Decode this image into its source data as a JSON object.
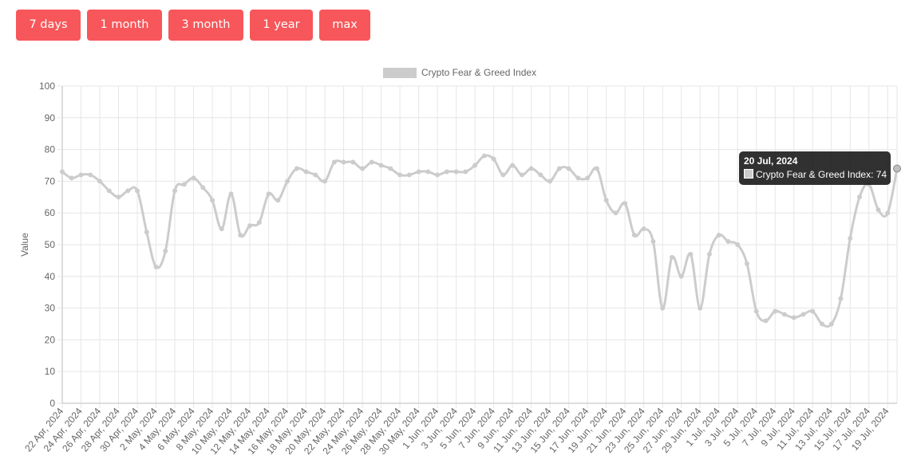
{
  "range_buttons": [
    {
      "label": "7 days"
    },
    {
      "label": "1 month"
    },
    {
      "label": "3 month"
    },
    {
      "label": "1 year"
    },
    {
      "label": "max"
    }
  ],
  "colors": {
    "button_bg": "#f7575a",
    "line": "#cccccc",
    "grid": "#e6e6e6",
    "axis_text": "#666666"
  },
  "tooltip": {
    "title": "20 Jul, 2024",
    "series": "Crypto Fear & Greed Index",
    "value": 74,
    "text": "Crypto Fear & Greed Index: 74"
  },
  "chart_data": {
    "type": "line",
    "title": "",
    "xlabel": "",
    "ylabel": "Value",
    "ylim": [
      0,
      100
    ],
    "yticks": [
      0,
      10,
      20,
      30,
      40,
      50,
      60,
      70,
      80,
      90,
      100
    ],
    "grid": true,
    "legend_position": "top-center",
    "x": [
      "22 Apr, 2024",
      "23 Apr, 2024",
      "24 Apr, 2024",
      "25 Apr, 2024",
      "26 Apr, 2024",
      "27 Apr, 2024",
      "28 Apr, 2024",
      "29 Apr, 2024",
      "30 Apr, 2024",
      "1 May, 2024",
      "2 May, 2024",
      "3 May, 2024",
      "4 May, 2024",
      "5 May, 2024",
      "6 May, 2024",
      "7 May, 2024",
      "8 May, 2024",
      "9 May, 2024",
      "10 May, 2024",
      "11 May, 2024",
      "12 May, 2024",
      "13 May, 2024",
      "14 May, 2024",
      "15 May, 2024",
      "16 May, 2024",
      "17 May, 2024",
      "18 May, 2024",
      "19 May, 2024",
      "20 May, 2024",
      "21 May, 2024",
      "22 May, 2024",
      "23 May, 2024",
      "24 May, 2024",
      "25 May, 2024",
      "26 May, 2024",
      "27 May, 2024",
      "28 May, 2024",
      "29 May, 2024",
      "30 May, 2024",
      "31 May, 2024",
      "1 Jun, 2024",
      "2 Jun, 2024",
      "3 Jun, 2024",
      "4 Jun, 2024",
      "5 Jun, 2024",
      "6 Jun, 2024",
      "7 Jun, 2024",
      "8 Jun, 2024",
      "9 Jun, 2024",
      "10 Jun, 2024",
      "11 Jun, 2024",
      "12 Jun, 2024",
      "13 Jun, 2024",
      "14 Jun, 2024",
      "15 Jun, 2024",
      "16 Jun, 2024",
      "17 Jun, 2024",
      "18 Jun, 2024",
      "19 Jun, 2024",
      "20 Jun, 2024",
      "21 Jun, 2024",
      "22 Jun, 2024",
      "23 Jun, 2024",
      "24 Jun, 2024",
      "25 Jun, 2024",
      "26 Jun, 2024",
      "27 Jun, 2024",
      "28 Jun, 2024",
      "29 Jun, 2024",
      "30 Jun, 2024",
      "1 Jul, 2024",
      "2 Jul, 2024",
      "3 Jul, 2024",
      "4 Jul, 2024",
      "5 Jul, 2024",
      "6 Jul, 2024",
      "7 Jul, 2024",
      "8 Jul, 2024",
      "9 Jul, 2024",
      "10 Jul, 2024",
      "11 Jul, 2024",
      "12 Jul, 2024",
      "13 Jul, 2024",
      "14 Jul, 2024",
      "15 Jul, 2024",
      "16 Jul, 2024",
      "17 Jul, 2024",
      "18 Jul, 2024",
      "19 Jul, 2024",
      "20 Jul, 2024"
    ],
    "x_tick_labels": [
      "22 Apr, 2024",
      "24 Apr, 2024",
      "26 Apr, 2024",
      "28 Apr, 2024",
      "30 Apr, 2024",
      "2 May, 2024",
      "4 May, 2024",
      "6 May, 2024",
      "8 May, 2024",
      "10 May, 2024",
      "12 May, 2024",
      "14 May, 2024",
      "16 May, 2024",
      "18 May, 2024",
      "20 May, 2024",
      "22 May, 2024",
      "24 May, 2024",
      "26 May, 2024",
      "28 May, 2024",
      "30 May, 2024",
      "1 Jun, 2024",
      "3 Jun, 2024",
      "5 Jun, 2024",
      "7 Jun, 2024",
      "9 Jun, 2024",
      "11 Jun, 2024",
      "13 Jun, 2024",
      "15 Jun, 2024",
      "17 Jun, 2024",
      "19 Jun, 2024",
      "21 Jun, 2024",
      "23 Jun, 2024",
      "25 Jun, 2024",
      "27 Jun, 2024",
      "29 Jun, 2024",
      "1 Jul, 2024",
      "3 Jul, 2024",
      "5 Jul, 2024",
      "7 Jul, 2024",
      "9 Jul, 2024",
      "11 Jul, 2024",
      "13 Jul, 2024",
      "15 Jul, 2024",
      "17 Jul, 2024",
      "19 Jul, 2024"
    ],
    "series": [
      {
        "name": "Crypto Fear & Greed Index",
        "values": [
          73,
          71,
          72,
          72,
          70,
          67,
          65,
          67,
          67,
          54,
          43,
          48,
          67,
          69,
          71,
          68,
          64,
          55,
          66,
          53,
          56,
          57,
          66,
          64,
          70,
          74,
          73,
          72,
          70,
          76,
          76,
          76,
          74,
          76,
          75,
          74,
          72,
          72,
          73,
          73,
          72,
          73,
          73,
          73,
          75,
          78,
          77,
          72,
          75,
          72,
          74,
          72,
          70,
          74,
          74,
          71,
          71,
          74,
          64,
          60,
          63,
          53,
          55,
          51,
          30,
          46,
          40,
          47,
          30,
          47,
          53,
          51,
          50,
          44,
          29,
          26,
          29,
          28,
          27,
          28,
          29,
          25,
          25,
          33,
          52,
          65,
          69,
          61,
          60,
          74
        ]
      }
    ]
  }
}
